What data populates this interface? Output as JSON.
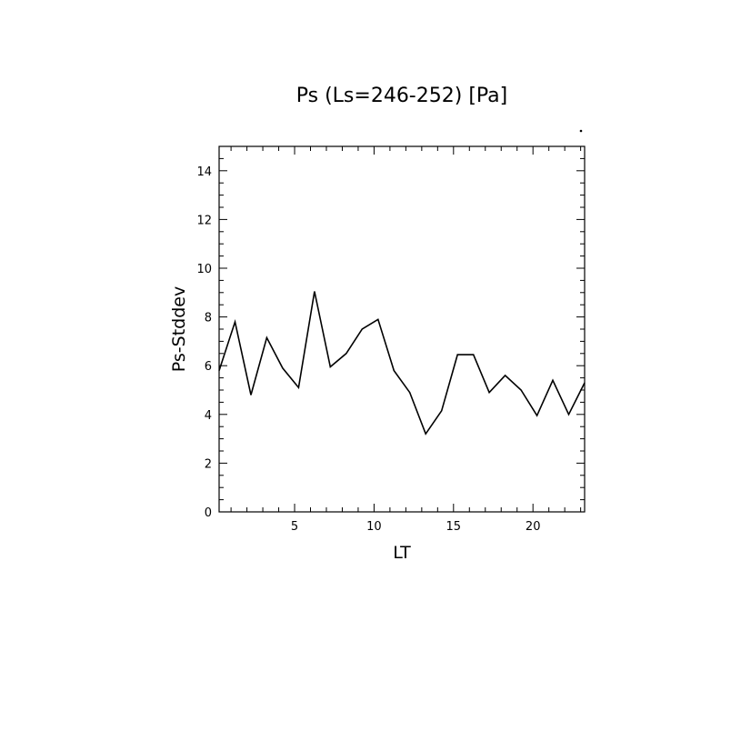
{
  "chart_data": {
    "type": "line",
    "title": "Ps (Ls=246-252) [Pa]",
    "xlabel": "LT",
    "ylabel": "Ps-Stddev",
    "xlim": [
      0.25,
      23.25
    ],
    "ylim": [
      0,
      15
    ],
    "xticks": [
      5,
      10,
      15,
      20
    ],
    "yticks": [
      0,
      2,
      4,
      6,
      8,
      10,
      12,
      14
    ],
    "grid": false,
    "series": [
      {
        "x": [
          0.25,
          1.25,
          2.25,
          3.25,
          4.25,
          5.25,
          6.25,
          7.25,
          8.25,
          9.25,
          10.25,
          11.25,
          12.25,
          13.25,
          14.25,
          15.25,
          16.25,
          17.25,
          18.25,
          19.25,
          20.25,
          21.25,
          22.25,
          23.25
        ],
        "values": [
          5.8,
          7.8,
          4.8,
          7.15,
          5.9,
          5.1,
          9.05,
          5.95,
          6.5,
          7.5,
          7.9,
          5.8,
          4.9,
          3.2,
          4.15,
          6.45,
          6.45,
          4.9,
          5.6,
          5.0,
          3.95,
          5.4,
          4.0,
          5.3
        ]
      }
    ]
  }
}
